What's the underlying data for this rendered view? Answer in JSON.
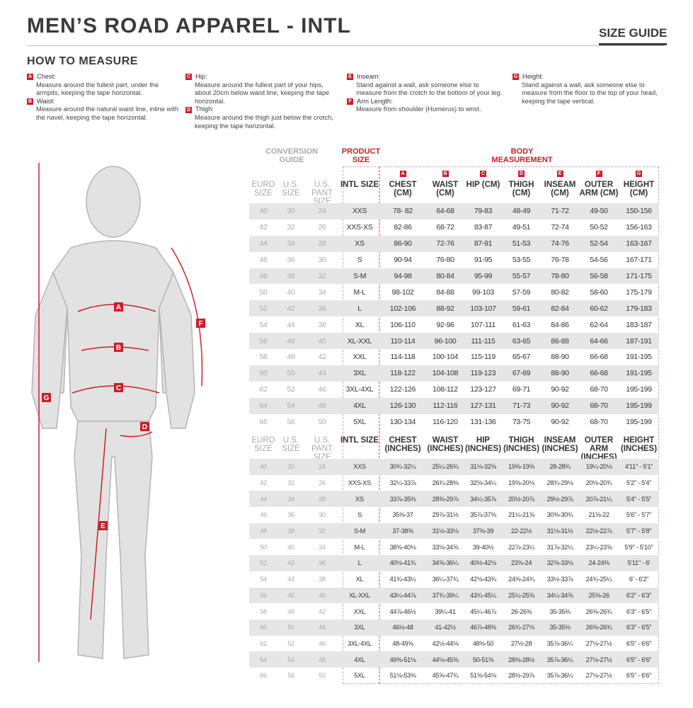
{
  "header": {
    "title": "MEN’S ROAD APPAREL - INTL",
    "size_guide": "SIZE GUIDE",
    "how_to": "HOW TO MEASURE"
  },
  "instructions": [
    [
      {
        "letter": "A",
        "title": "Chest:",
        "text": "Measure around the fullest part, under the armpits, keeping the tape horizontal."
      },
      {
        "letter": "B",
        "title": "Waist:",
        "text": "Measure around the natural waist line, inline with the navel, keeping the tape horizontal."
      }
    ],
    [
      {
        "letter": "C",
        "title": "Hip:",
        "text": "Measure around the fullest part of your hips, about 20cm below waist line, keeping the tape horizontal."
      },
      {
        "letter": "D",
        "title": "Thigh:",
        "text": "Measure around the thigh just below the crotch, keeping the tape horizontal."
      }
    ],
    [
      {
        "letter": "E",
        "title": "Inseam:",
        "text": "Stand against a wall, ask someone else to measure from the crotch to the bottom of your leg."
      },
      {
        "letter": "F",
        "title": "Arm Length:",
        "text": "Measure from shoulder (Humerus) to wrist."
      }
    ],
    [
      {
        "letter": "G",
        "title": "Height:",
        "text": "Stand against a wall, ask someone else to measure from the floor to the top of your head, keeping the tape vertical."
      }
    ]
  ],
  "groups": {
    "conversion": "CONVERSION GUIDE",
    "product": "PRODUCT SIZE",
    "body": "BODY MEASUREMENT"
  },
  "accent": "#c8202a",
  "letters": [
    "A",
    "B",
    "C",
    "D",
    "E",
    "F",
    "G"
  ],
  "cm_headers": [
    "EURO SIZE",
    "U.S. SIZE",
    "U.S. PANT SIZE",
    "INTL SIZE",
    "CHEST (CM)",
    "WAIST (CM)",
    "HIP (CM)",
    "THIGH (CM)",
    "INSEAM (CM)",
    "OUTER ARM (CM)",
    "HEIGHT (CM)"
  ],
  "in_headers": [
    "EURO SIZE",
    "U.S. SIZE",
    "U.S. PANT SIZE",
    "INTL SIZE",
    "CHEST (INCHES)",
    "WAIST (INCHES)",
    "HIP (INCHES)",
    "THIGH (INCHES)",
    "INSEAM (INCHES)",
    "OUTER ARM (INCHES)",
    "HEIGHT (INCHES)"
  ],
  "cm_rows": [
    [
      "40",
      "30",
      "24",
      "XXS",
      "78- 82",
      "64-68",
      "79-83",
      "48-49",
      "71-72",
      "49-50",
      "150-156"
    ],
    [
      "42",
      "32",
      "26",
      "XXS-XS",
      "82-86",
      "68-72",
      "83-87",
      "49-51",
      "72-74",
      "50-52",
      "156-163"
    ],
    [
      "44",
      "34",
      "28",
      "XS",
      "86-90",
      "72-76",
      "87-91",
      "51-53",
      "74-76",
      "52-54",
      "163-167"
    ],
    [
      "46",
      "36",
      "30",
      "S",
      "90-94",
      "76-80",
      "91-95",
      "53-55",
      "76-78",
      "54-56",
      "167-171"
    ],
    [
      "48",
      "38",
      "32",
      "S-M",
      "94-98",
      "80-84",
      "95-99",
      "55-57",
      "78-80",
      "56-58",
      "171-175"
    ],
    [
      "50",
      "40",
      "34",
      "M-L",
      "98-102",
      "84-88",
      "99-103",
      "57-59",
      "80-82",
      "58-60",
      "175-179"
    ],
    [
      "52",
      "42",
      "36",
      "L",
      "102-106",
      "88-92",
      "103-107",
      "59-61",
      "82-84",
      "60-62",
      "179-183"
    ],
    [
      "54",
      "44",
      "38",
      "XL",
      "106-110",
      "92-96",
      "107-111",
      "61-63",
      "84-86",
      "62-64",
      "183-187"
    ],
    [
      "56",
      "46",
      "40",
      "XL-XXL",
      "110-114",
      "96-100",
      "111-115",
      "63-65",
      "86-88",
      "64-66",
      "187-191"
    ],
    [
      "58",
      "48",
      "42",
      "XXL",
      "114-118",
      "100-104",
      "115-119",
      "65-67",
      "88-90",
      "66-68",
      "191-195"
    ],
    [
      "60",
      "50",
      "44",
      "3XL",
      "118-122",
      "104-108",
      "119-123",
      "67-69",
      "88-90",
      "66-68",
      "191-195"
    ],
    [
      "62",
      "52",
      "46",
      "3XL-4XL",
      "122-126",
      "108-112",
      "123-127",
      "69-71",
      "90-92",
      "68-70",
      "195-199"
    ],
    [
      "64",
      "54",
      "48",
      "4XL",
      "126-130",
      "112-116",
      "127-131",
      "71-73",
      "90-92",
      "68-70",
      "195-199"
    ],
    [
      "66",
      "56",
      "50",
      "5XL",
      "130-134",
      "116-120",
      "131-136",
      "73-75",
      "90-92",
      "68-70",
      "195-199"
    ]
  ],
  "in_rows": [
    [
      "40",
      "30",
      "24",
      "XXS",
      "30¾-32¼",
      "25¼-26¾",
      "31⅛-32⅝",
      "19⅜-19⅝",
      "28-28¾",
      "19¼-20⅛",
      "4'11\" - 5'1\""
    ],
    [
      "42",
      "32",
      "26",
      "XXS-XS",
      "32¼-33⅞",
      "26¾-28⅜",
      "32⅝-34¼",
      "19⅝-20⅛",
      "28¾-29⅛",
      "20⅛-20¾",
      "5'2\" - 5'4\""
    ],
    [
      "44",
      "34",
      "28",
      "XS",
      "33⅞-35⅜",
      "28⅜-29⅞",
      "34¼-35⅞",
      "20½-20⅞",
      "29½-29⅞",
      "20⅞-21¼",
      "5'4\" - 5'5\""
    ],
    [
      "46",
      "36",
      "30",
      "S",
      "35⅜-37",
      "29⅞-31½",
      "35⅞-37⅜",
      "21¼-21⅝",
      "30⅜-30¾",
      "21⅝-22",
      "5'6\" - 5'7\""
    ],
    [
      "48",
      "38",
      "32",
      "S-M",
      "37-38⅝",
      "31½-33⅛",
      "37⅜-39",
      "22-22½",
      "31⅛-31½",
      "22½-22⅞",
      "5'7\" - 5'8\""
    ],
    [
      "50",
      "40",
      "34",
      "M-L",
      "38⅝-40⅛",
      "33⅛-34⅝",
      "39-40½",
      "22⅞-23¼",
      "31⅞-32¼",
      "23¼-23⅝",
      "5'9\" - 5'10\""
    ],
    [
      "52",
      "42",
      "36",
      "L",
      "40⅛-41¾",
      "34⅝-36¼",
      "40½-42⅛",
      "23⅝-24",
      "32⅝-33⅛",
      "24-24⅜",
      "5'11\" - 6'"
    ],
    [
      "54",
      "44",
      "38",
      "XL",
      "41¾-43¼",
      "36¼-37¾",
      "42⅛-43¾",
      "24⅜-24¾",
      "33½-33⅞",
      "24¾-25¼",
      "6' - 6'2\""
    ],
    [
      "56",
      "46",
      "40",
      "XL-XXL",
      "43¼-44⅞",
      "37¾-39¼",
      "43¾-45¼",
      "25¼-25⅝",
      "34¼-34⅝",
      "25⅝-26",
      "6'2\" - 6'3\""
    ],
    [
      "58",
      "48",
      "42",
      "XXL",
      "44⅞-46½",
      "39¼-41",
      "45¼-46⅞",
      "26-26⅜",
      "35-35⅜",
      "26⅜-26¾",
      "6'3\" - 6'5\""
    ],
    [
      "60",
      "50",
      "44",
      "3XL",
      "46½-48",
      "41-42½",
      "46⅞-48⅜",
      "26¾-27⅛",
      "35-35⅜",
      "26⅜-26¾",
      "6'3\" - 6'5\""
    ],
    [
      "62",
      "52",
      "46",
      "3XL-4XL",
      "48-49⅝",
      "42½-44⅛",
      "48⅜-50",
      "27½-28",
      "35⅞-36¼",
      "27⅛-27½",
      "6'5\" - 6'6\""
    ],
    [
      "64",
      "54",
      "48",
      "4XL",
      "49⅝-51⅛",
      "44⅛-45⅝",
      "50-51⅝",
      "28⅜-28½",
      "35⅞-36¼",
      "27⅛-27½",
      "6'5\" - 6'6\""
    ],
    [
      "66",
      "56",
      "50",
      "5XL",
      "51⅛-53⅜",
      "45⅝-47¾",
      "51⅝-54⅛",
      "28½-29⅞",
      "35⅞-36¼",
      "27⅛-27½",
      "6'5\" - 6'6\""
    ]
  ]
}
